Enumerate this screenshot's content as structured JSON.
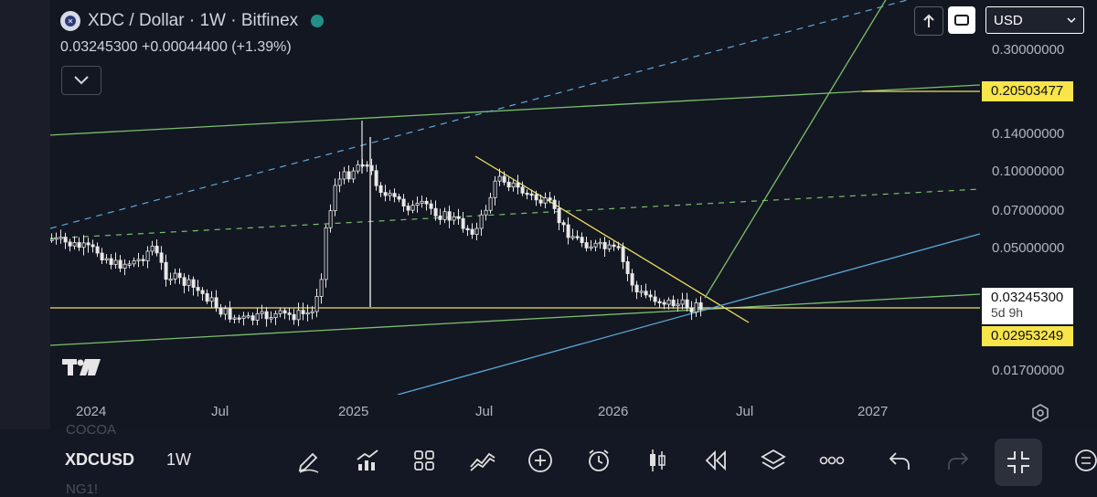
{
  "header": {
    "symbol_title": "XDC / Dollar · 1W · Bitfinex",
    "price_line": "0.03245300  +0.00044400 (+1.39%)"
  },
  "currency": "USD",
  "price_axis": {
    "labels": [
      "0.30000000",
      "0.14000000",
      "0.10000000",
      "0.07000000",
      "0.05000000",
      "0.01700000"
    ],
    "levels": [
      0.3,
      0.14,
      0.1,
      0.07,
      0.05,
      0.017
    ],
    "tag_resistance": "0.20503477",
    "tag_current_price": "0.03245300",
    "tag_countdown": "5d 9h",
    "tag_support": "0.02953249"
  },
  "time_axis": {
    "labels": [
      "2024",
      "Jul",
      "2025",
      "Jul",
      "2026",
      "Jul",
      "2027"
    ]
  },
  "bottom_toolbar": {
    "symbol": "XDCUSD",
    "timeframe": "1W",
    "ghost_above": "COCOA",
    "ghost_below": "NG1!"
  },
  "colors": {
    "background": "#131722",
    "candle": "#e8e8e8",
    "trend_yellow": "#f0e060",
    "trend_green": "#7bc06a",
    "trend_blue": "#5ea8d8",
    "tag_yellow": "#f7e54a"
  },
  "icons": [
    "tradingview-logo",
    "chevron-down-icon",
    "arrow-up-icon",
    "compare-icon",
    "settings-icon",
    "pencil-icon",
    "chart-up-icon",
    "grid-icon",
    "indicators-icon",
    "plus-icon",
    "alarm-icon",
    "candles-icon",
    "replay-icon",
    "layers-icon",
    "more-icon",
    "undo-icon",
    "redo-icon",
    "fullscreen-icon"
  ]
}
